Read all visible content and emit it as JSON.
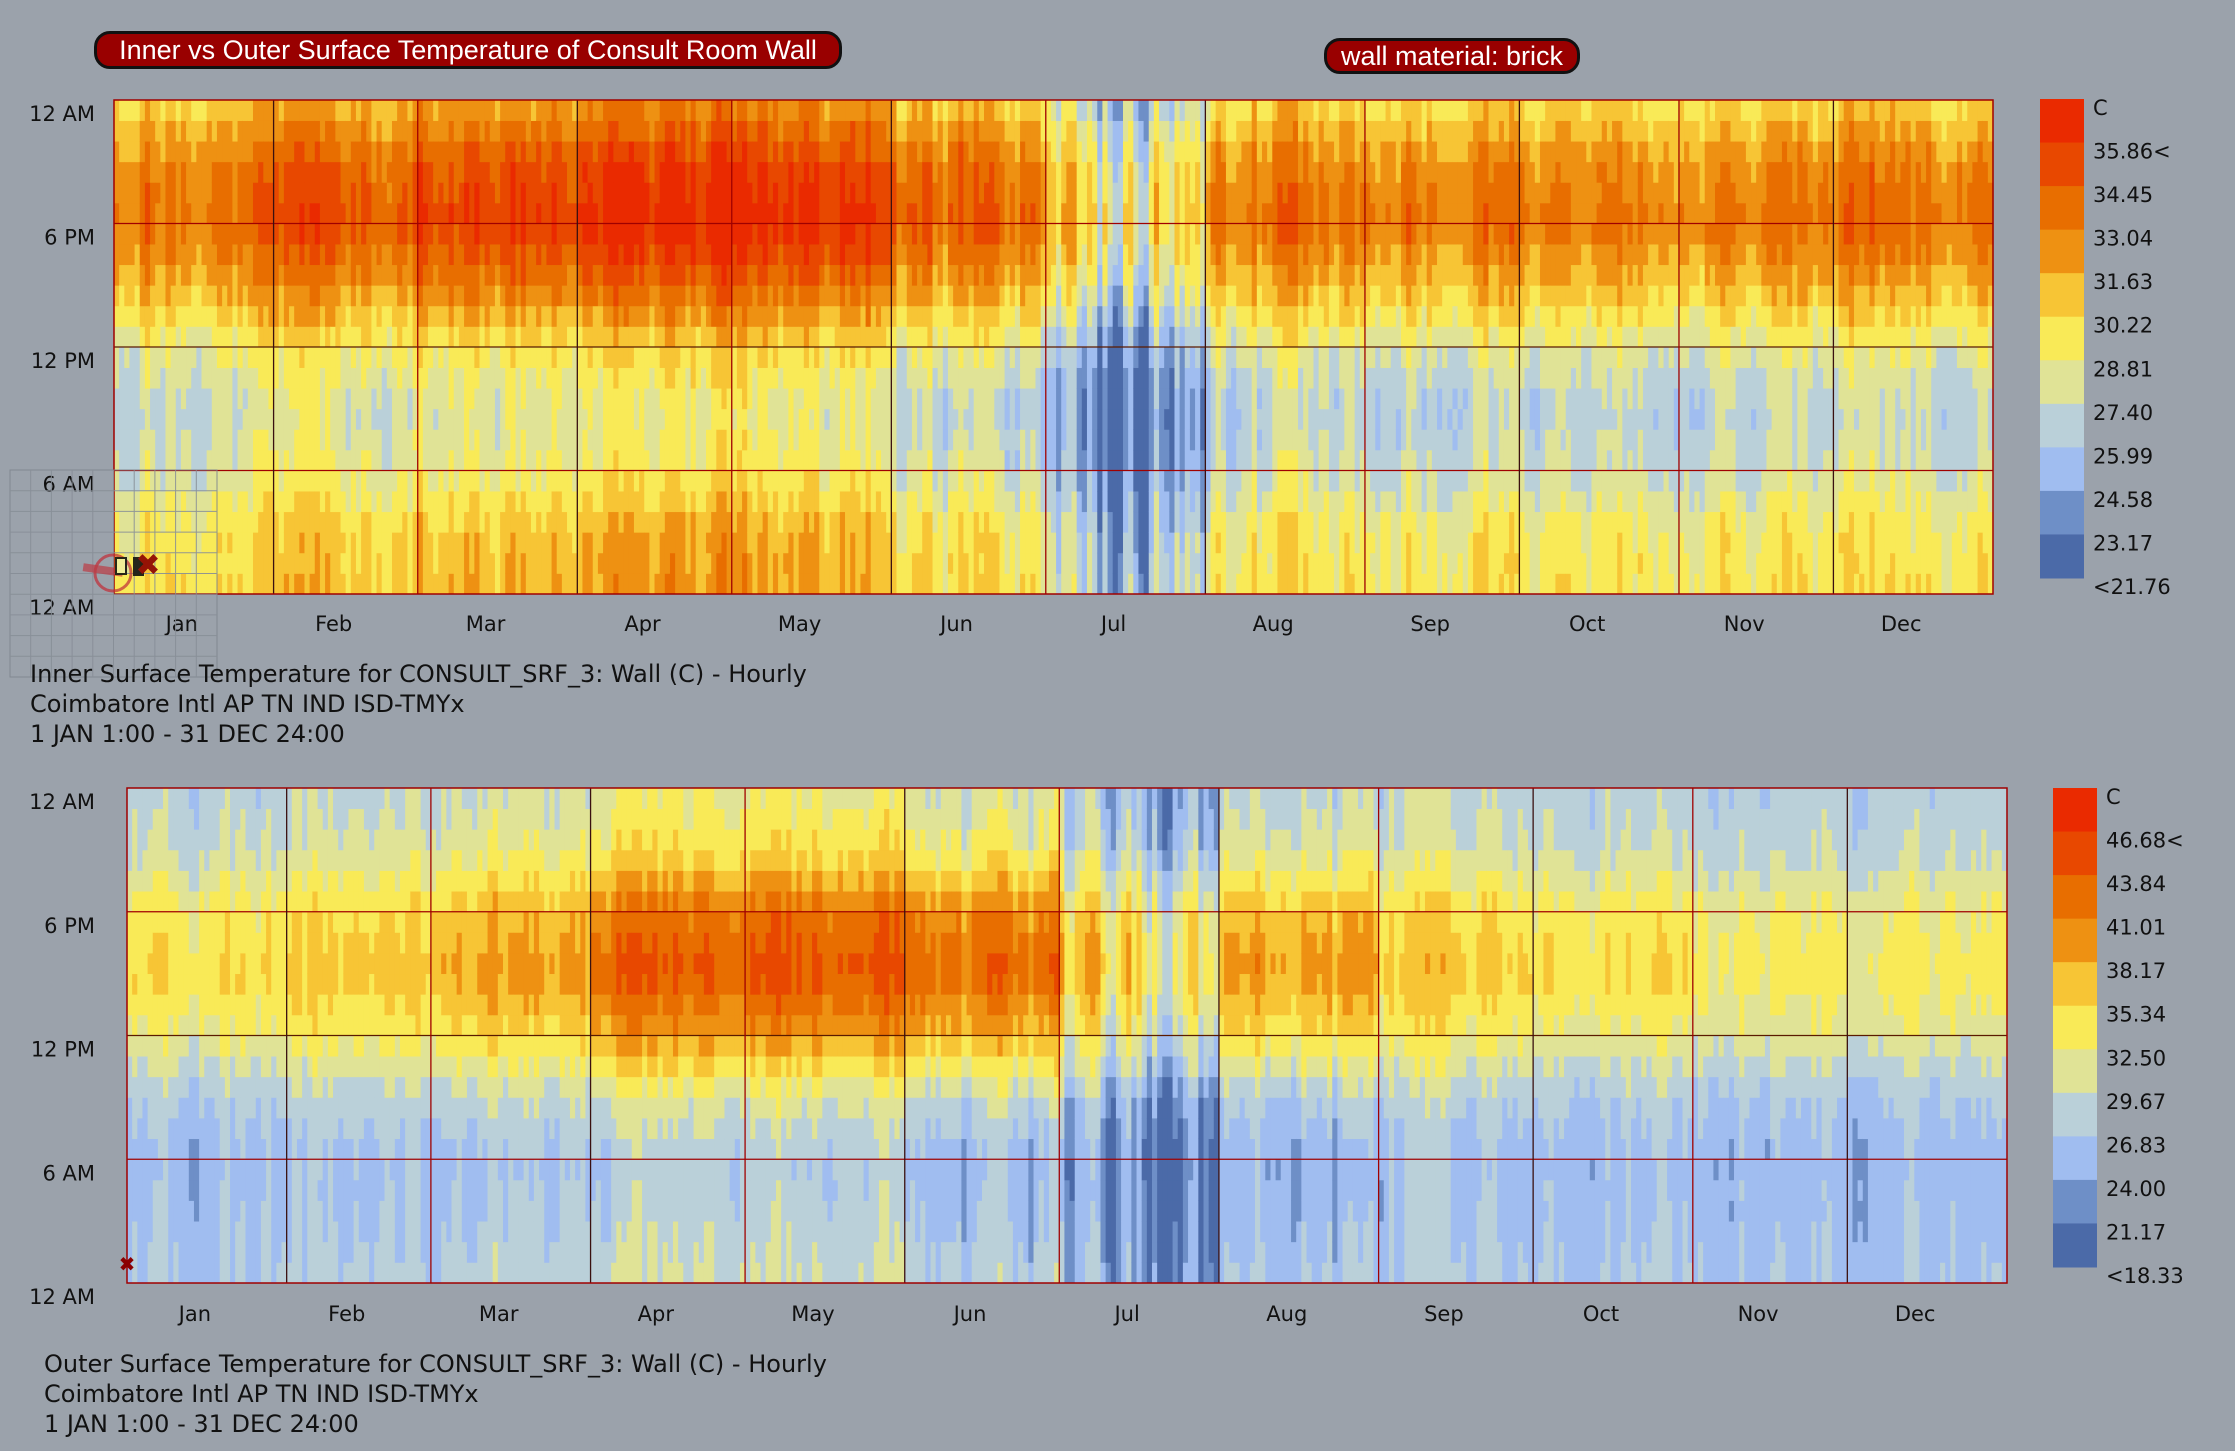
{
  "header": {
    "title": "Inner vs Outer Surface Temperature of Consult Room Wall",
    "material": "wall material: brick"
  },
  "chart_data": [
    {
      "type": "heatmap",
      "title": "Inner Surface Temperature for CONSULT_SRF_3: Wall (C) - Hourly",
      "caption": [
        "Inner Surface Temperature for CONSULT_SRF_3: Wall (C) - Hourly",
        "Coimbatore Intl AP TN IND ISD-TMYx",
        "1 JAN 1:00 - 31 DEC 24:00"
      ],
      "x_labels": [
        "Jan",
        "Feb",
        "Mar",
        "Apr",
        "May",
        "Jun",
        "Jul",
        "Aug",
        "Sep",
        "Oct",
        "Nov",
        "Dec"
      ],
      "y_labels": [
        "12 AM",
        "6 PM",
        "12 PM",
        "6 AM",
        "12 AM"
      ],
      "legend_unit": "C",
      "legend_labels": [
        "35.86<",
        "34.45",
        "33.04",
        "31.63",
        "30.22",
        "28.81",
        "27.40",
        "25.99",
        "24.58",
        "23.17",
        "<21.76"
      ],
      "legend_range": [
        21.76,
        37.27
      ],
      "anchor_hours": [
        0,
        3,
        6,
        9,
        12,
        15,
        18,
        21,
        24
      ],
      "base_profile": [
        30.2,
        29.8,
        28.0,
        27.3,
        28.8,
        31.8,
        33.9,
        33.0,
        30.5
      ],
      "monthly_offset": [
        0,
        0.4,
        0.8,
        1.2,
        1.0,
        0.6,
        -0.8,
        -0.3,
        -0.5,
        -0.4,
        -0.6,
        -0.2
      ],
      "monthly_peak_boost": [
        0,
        0.5,
        1.0,
        1.5,
        1.5,
        1.0,
        0,
        0.3,
        0.3,
        0,
        0,
        0.3
      ]
    },
    {
      "type": "heatmap",
      "title": "Outer Surface Temperature for CONSULT_SRF_3: Wall (C) - Hourly",
      "caption": [
        "Outer Surface Temperature for CONSULT_SRF_3: Wall (C) - Hourly",
        "Coimbatore Intl AP TN IND ISD-TMYx",
        "1 JAN 1:00 - 31 DEC 24:00"
      ],
      "x_labels": [
        "Jan",
        "Feb",
        "Mar",
        "Apr",
        "May",
        "Jun",
        "Jul",
        "Aug",
        "Sep",
        "Oct",
        "Nov",
        "Dec"
      ],
      "y_labels": [
        "12 AM",
        "6 PM",
        "12 PM",
        "6 AM",
        "12 AM"
      ],
      "legend_unit": "C",
      "legend_labels": [
        "46.68<",
        "43.84",
        "41.01",
        "38.17",
        "35.34",
        "32.50",
        "29.67",
        "26.83",
        "24.00",
        "21.17",
        "<18.33"
      ],
      "legend_range": [
        18.33,
        49.51
      ],
      "anchor_hours": [
        0,
        3,
        6,
        9,
        12,
        15,
        18,
        21,
        24
      ],
      "base_profile": [
        27.5,
        26.5,
        26.0,
        28.0,
        32.5,
        35.5,
        34.0,
        30.0,
        28.5
      ],
      "monthly_offset": [
        -0.5,
        0,
        0.5,
        1.5,
        1.5,
        1.0,
        -0.5,
        0,
        0,
        -0.5,
        -0.5,
        -1.0
      ],
      "monthly_peak_boost": [
        0,
        1,
        3,
        7,
        8,
        8,
        4,
        5,
        1,
        0,
        -1,
        -1
      ]
    }
  ],
  "legend_colors": [
    "#ea2a00",
    "#e84800",
    "#e86e00",
    "#ee9112",
    "#f7c535",
    "#f9ea57",
    "#e0e396",
    "#bad0d9",
    "#a0bdf0",
    "#6e8fc7",
    "#4b6aa8"
  ]
}
